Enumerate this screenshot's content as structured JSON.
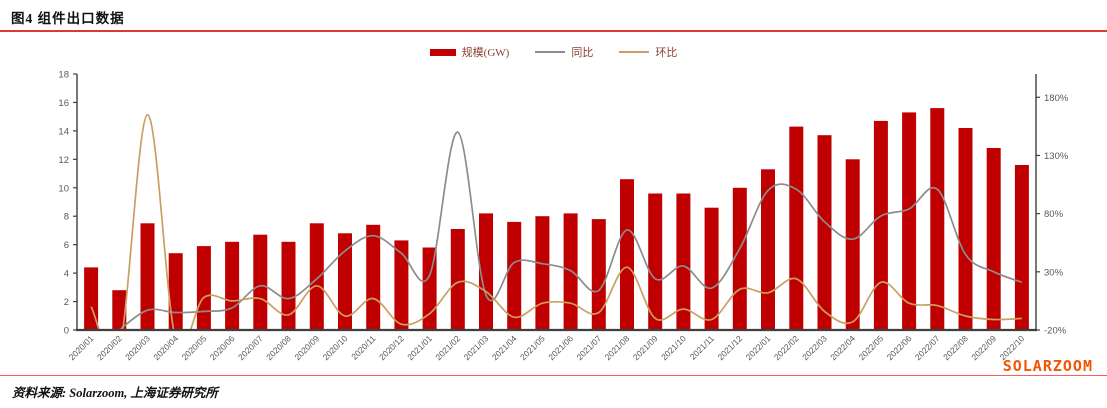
{
  "figure": {
    "title": "图4  组件出口数据",
    "source": "资料来源: Solarzoom, 上海证券研究所",
    "watermark": "SOLARZOOM"
  },
  "legend": {
    "bar_label": "规模(GW)",
    "yoy_label": "同比",
    "mom_label": "环比"
  },
  "colors": {
    "bar": "#c00000",
    "yoy_line": "#8c8c8c",
    "mom_line": "#c9a063",
    "axis": "#3f3f3f",
    "tick_text": "#595959",
    "rule_top": "#dc3a2e",
    "rule_bottom": "#ef655a",
    "watermark": "#f25505"
  },
  "chart_data": {
    "type": "bar+line combo, dual axis",
    "categories": [
      "2020/01",
      "2020/02",
      "2020/03",
      "2020/04",
      "2020/05",
      "2020/06",
      "2020/07",
      "2020/08",
      "2020/09",
      "2020/10",
      "2020/11",
      "2020/12",
      "2021/01",
      "2021/02",
      "2021/03",
      "2021/04",
      "2021/05",
      "2021/06",
      "2021/07",
      "2021/08",
      "2021/09",
      "2021/10",
      "2021/11",
      "2021/12",
      "2022/01",
      "2022/02",
      "2022/03",
      "2022/04",
      "2022/05",
      "2022/06",
      "2022/07",
      "2022/08",
      "2022/09",
      "2022/10"
    ],
    "series": [
      {
        "name": "规模(GW)",
        "type": "bar",
        "axis": "left",
        "values": [
          4.4,
          2.8,
          7.5,
          5.4,
          5.9,
          6.2,
          6.7,
          6.2,
          7.5,
          6.8,
          7.4,
          6.3,
          5.8,
          7.1,
          8.2,
          7.6,
          8.0,
          8.2,
          7.8,
          10.6,
          9.6,
          9.6,
          8.6,
          10.0,
          11.3,
          14.3,
          13.7,
          12.0,
          14.7,
          15.3,
          15.6,
          14.2,
          12.8,
          11.6
        ]
      },
      {
        "name": "同比",
        "type": "line",
        "axis": "right",
        "unit": "%",
        "values": [
          null,
          -20,
          -3,
          -5,
          -4,
          -1,
          18,
          7,
          24,
          48,
          61,
          46,
          27,
          150,
          10,
          38,
          37,
          31,
          14,
          66,
          24,
          35,
          16,
          50,
          100,
          101,
          73,
          58,
          78,
          84,
          101,
          45,
          30,
          21
        ]
      },
      {
        "name": "环比",
        "type": "line",
        "axis": "right",
        "unit": "%",
        "values": [
          0,
          -36,
          165,
          -28,
          8,
          5,
          7,
          -7,
          18,
          -8,
          7,
          -15,
          -6,
          21,
          13,
          -9,
          3,
          3,
          -5,
          34,
          -10,
          -2,
          -11,
          15,
          12,
          24,
          -4,
          -13,
          21,
          3,
          1,
          -8,
          -11,
          -10
        ]
      }
    ],
    "left_axis": {
      "min": 0,
      "max": 18,
      "tick_values": [
        0,
        2,
        4,
        6,
        8,
        10,
        12,
        14,
        16,
        18
      ]
    },
    "right_axis": {
      "min": -20,
      "max": 200,
      "tick_labels": [
        "-20%",
        "30%",
        "80%",
        "130%",
        "180%"
      ],
      "tick_values": [
        -20,
        30,
        80,
        130,
        180
      ]
    },
    "grid": false,
    "legend_position": "top-center",
    "x_tick_rotation": -45
  }
}
